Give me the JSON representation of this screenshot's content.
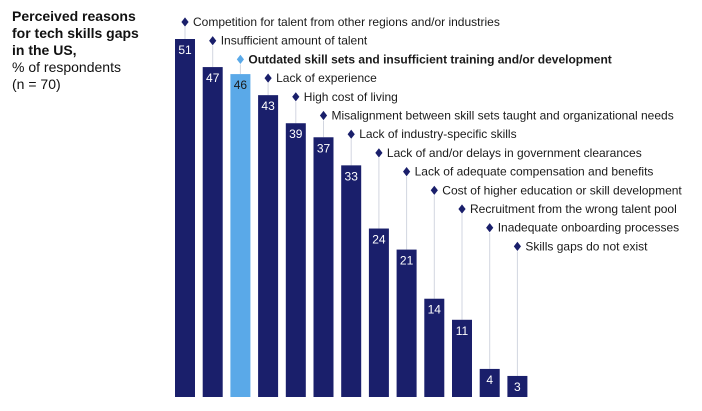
{
  "header": {
    "title_line1": "Perceived reasons",
    "title_line2": "for tech skills gaps",
    "title_line3": "in the US,",
    "subtitle": "% of respondents",
    "note": "(n = 70)"
  },
  "colors": {
    "bar": "#1a1f6b",
    "highlight": "#5aa9e8",
    "connector": "#d2d6e0",
    "text": "#1a1a1a",
    "value_label": "#ffffff"
  },
  "chart_data": {
    "type": "bar",
    "title": "Perceived reasons for tech skills gaps in the US, % of respondents (n = 70)",
    "xlabel": "",
    "ylabel": "% of respondents",
    "ylim": [
      0,
      51
    ],
    "highlight_index": 2,
    "categories": [
      "Competition for talent from other regions and/or industries",
      "Insufficient amount of talent",
      "Outdated skill sets and insufficient training and/or development",
      "Lack of experience",
      "High cost of living",
      "Misalignment between skill sets taught and organizational needs",
      "Lack of industry-specific skills",
      "Lack of and/or delays in government clearances",
      "Lack of adequate compensation and benefits",
      "Cost of higher education or skill development",
      "Recruitment from the wrong talent pool",
      "Inadequate onboarding processes",
      "Skills gaps do not exist"
    ],
    "values": [
      51,
      47,
      46,
      43,
      39,
      37,
      33,
      24,
      21,
      14,
      11,
      4,
      3
    ]
  }
}
